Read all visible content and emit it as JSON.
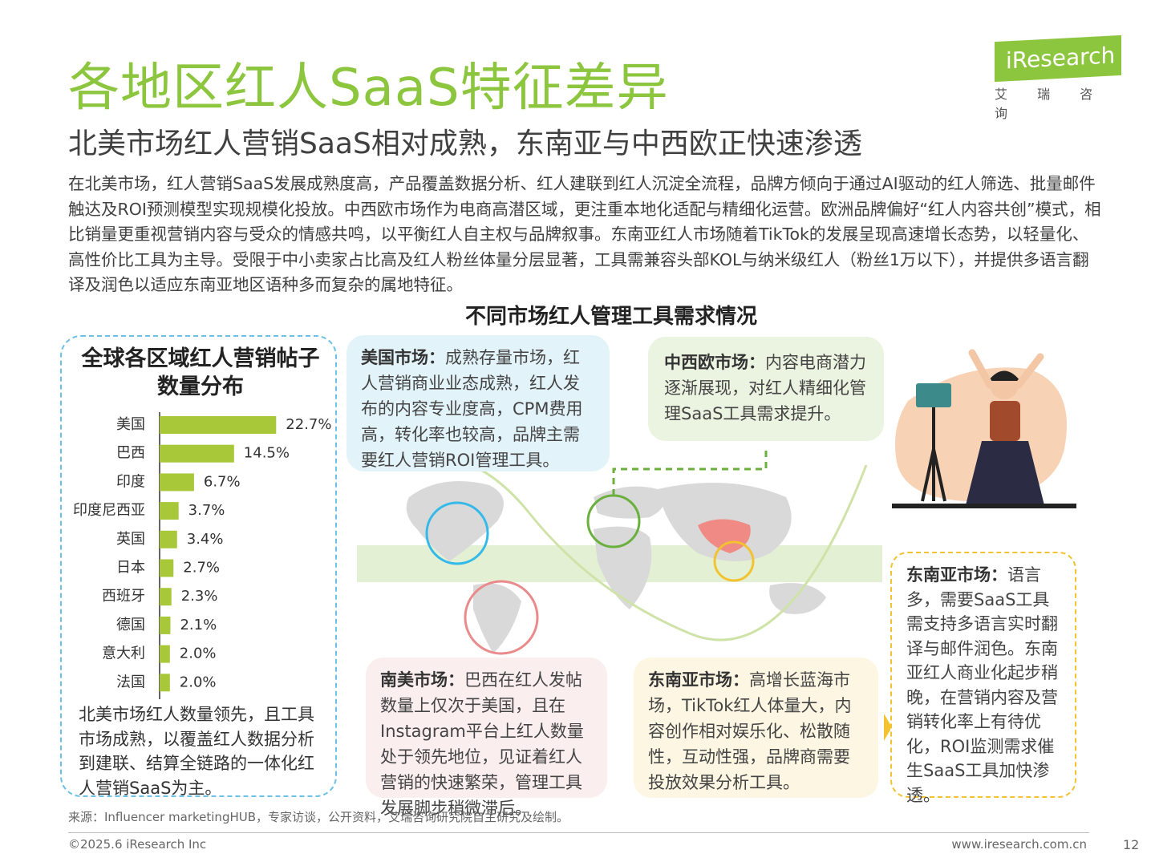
{
  "header": {
    "title": "各地区红人SaaS特征差异",
    "subtitle": "北美市场红人营销SaaS相对成熟，东南亚与中西欧正快速渗透",
    "logo": "iResearch",
    "logo_cn": "艾 瑞 咨 询"
  },
  "intro": "在北美市场，红人营销SaaS发展成熟度高，产品覆盖数据分析、红人建联到红人沉淀全流程，品牌方倾向于通过AI驱动的红人筛选、批量邮件触达及ROI预测模型实现规模化投放。中西欧市场作为电商高潜区域，更注重本地化适配与精细化运营。欧洲品牌偏好“红人内容共创”模式，相比销量更重视营销内容与受众的情感共鸣，以平衡红人自主权与品牌叙事。东南亚红人市场随着TikTok的发展呈现高速增长态势，以轻量化、高性价比工具为主导。受限于中小卖家占比高及红人粉丝体量分层显著，工具需兼容头部KOL与纳米级红人（粉丝1万以下），并提供多语言翻译及润色以适应东南亚地区语种多而复杂的属地特征。",
  "section_title": "不同市场红人管理工具需求情况",
  "chart_data": {
    "type": "bar",
    "orientation": "horizontal",
    "title": "全球各区域红人营销帖子数量分布",
    "categories": [
      "美国",
      "巴西",
      "印度",
      "印度尼西亚",
      "英国",
      "日本",
      "西班牙",
      "德国",
      "意大利",
      "法国"
    ],
    "values": [
      22.7,
      14.5,
      6.7,
      3.7,
      3.4,
      2.7,
      2.3,
      2.1,
      2.0,
      2.0
    ],
    "value_labels": [
      "22.7%",
      "14.5%",
      "6.7%",
      "3.7%",
      "3.4%",
      "2.7%",
      "2.3%",
      "2.1%",
      "2.0%",
      "2.0%"
    ],
    "color": "#a8c83a",
    "note": "北美市场红人数量领先，且工具市场成熟，以覆盖红人数据分析到建联、结算全链路的一体化红人营销SaaS为主。"
  },
  "cards": {
    "us": {
      "label": "美国市场：",
      "text": "成熟存量市场，红人营销商业业态成熟，红人发布的内容专业度高，CPM费用高，转化率也较高，品牌主需要红人营销ROI管理工具。"
    },
    "cee": {
      "label": "中西欧市场：",
      "text": "内容电商潜力逐渐展现，对红人精细化管理SaaS工具需求提升。"
    },
    "sa": {
      "label": "南美市场：",
      "text": "巴西在红人发帖数量上仅次于美国，且在Instagram平台上红人数量处于领先地位，见证着红人营销的快速繁荣，管理工具发展脚步稍微滞后。"
    },
    "sea": {
      "label": "东南亚市场：",
      "text": "高增长蓝海市场，TikTok红人体量大，内容创作相对娱乐化、松散随性，互动性强，品牌商需要投放效果分析工具。"
    },
    "sea_detail": {
      "label": "东南亚市场：",
      "text": "语言多，需要SaaS工具需支持多语言实时翻译与邮件润色。东南亚红人商业化起步稍晚，在营销内容及营销转化率上有待优化，ROI监测需求催生SaaS工具加快渗透。"
    }
  },
  "footer": {
    "source": "来源：Influencer marketingHUB，专家访谈，公开资料，艾瑞咨询研究院自主研究及绘制。",
    "copyright": "©2025.6 iResearch Inc",
    "url": "www.iresearch.com.cn",
    "page": "12"
  }
}
